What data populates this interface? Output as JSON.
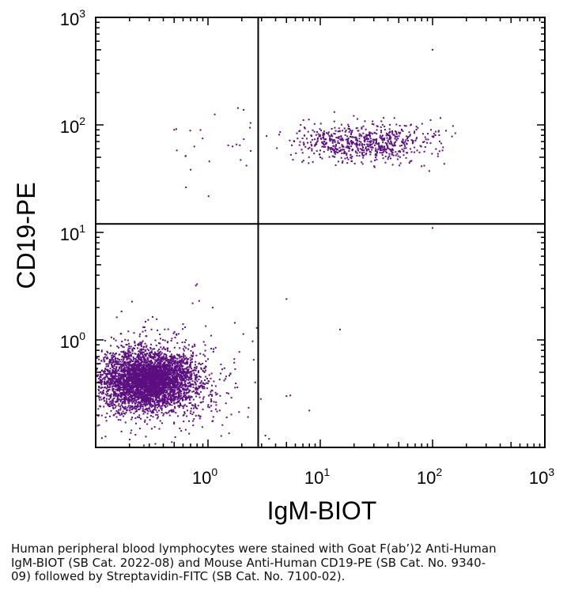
{
  "chart_data": {
    "type": "scatter",
    "scale": "log",
    "xlabel": "IgM-BIOT",
    "ylabel": "CD19-PE",
    "xlim": [
      0.1,
      1000
    ],
    "ylim": [
      0.1,
      1000
    ],
    "x_ticks": [
      {
        "base": "10",
        "exp": "0",
        "value": 1
      },
      {
        "base": "10",
        "exp": "1",
        "value": 10
      },
      {
        "base": "10",
        "exp": "2",
        "value": 100
      },
      {
        "base": "10",
        "exp": "3",
        "value": 1000
      }
    ],
    "y_ticks": [
      {
        "base": "10",
        "exp": "0",
        "value": 1
      },
      {
        "base": "10",
        "exp": "1",
        "value": 10
      },
      {
        "base": "10",
        "exp": "2",
        "value": 100
      },
      {
        "base": "10",
        "exp": "3",
        "value": 1000
      }
    ],
    "quadrant_gates": {
      "x": 2.8,
      "y": 12
    },
    "point_color": "#5b0f80",
    "populations": [
      {
        "description": "CD19- IgM- lymphocytes",
        "center": {
          "x": 0.3,
          "y": 0.42
        },
        "approx_count": 4500
      },
      {
        "description": "CD19+ IgM+ B cells",
        "x_range": [
          3,
          200
        ],
        "center_y": 68,
        "approx_count": 700
      },
      {
        "description": "CD19+ IgM- cells",
        "x_range": [
          0.5,
          2.8
        ],
        "center_y": 65,
        "approx_count": 25
      }
    ],
    "outliers": [
      {
        "x": 100,
        "y": 500
      },
      {
        "x": 100,
        "y": 11
      },
      {
        "x": 0.8,
        "y": 3.3
      },
      {
        "x": 0.78,
        "y": 3.2
      },
      {
        "x": 5,
        "y": 2.4
      },
      {
        "x": 15,
        "y": 1.25
      },
      {
        "x": 0.5,
        "y": 90
      },
      {
        "x": 1.1,
        "y": 2.0
      },
      {
        "x": 0.6,
        "y": 1.4
      },
      {
        "x": 5,
        "y": 0.3
      },
      {
        "x": 8,
        "y": 0.22
      },
      {
        "x": 3.5,
        "y": 0.12
      }
    ]
  },
  "caption": "Human peripheral blood lymphocytes were stained with Goat F(ab’)2 Anti-Human IgM-BIOT (SB Cat. 2022-08) and Mouse Anti-Human CD19-PE (SB Cat. No. 9340-09) followed by Streptavidin-FITC (SB Cat. No. 7100-02)."
}
